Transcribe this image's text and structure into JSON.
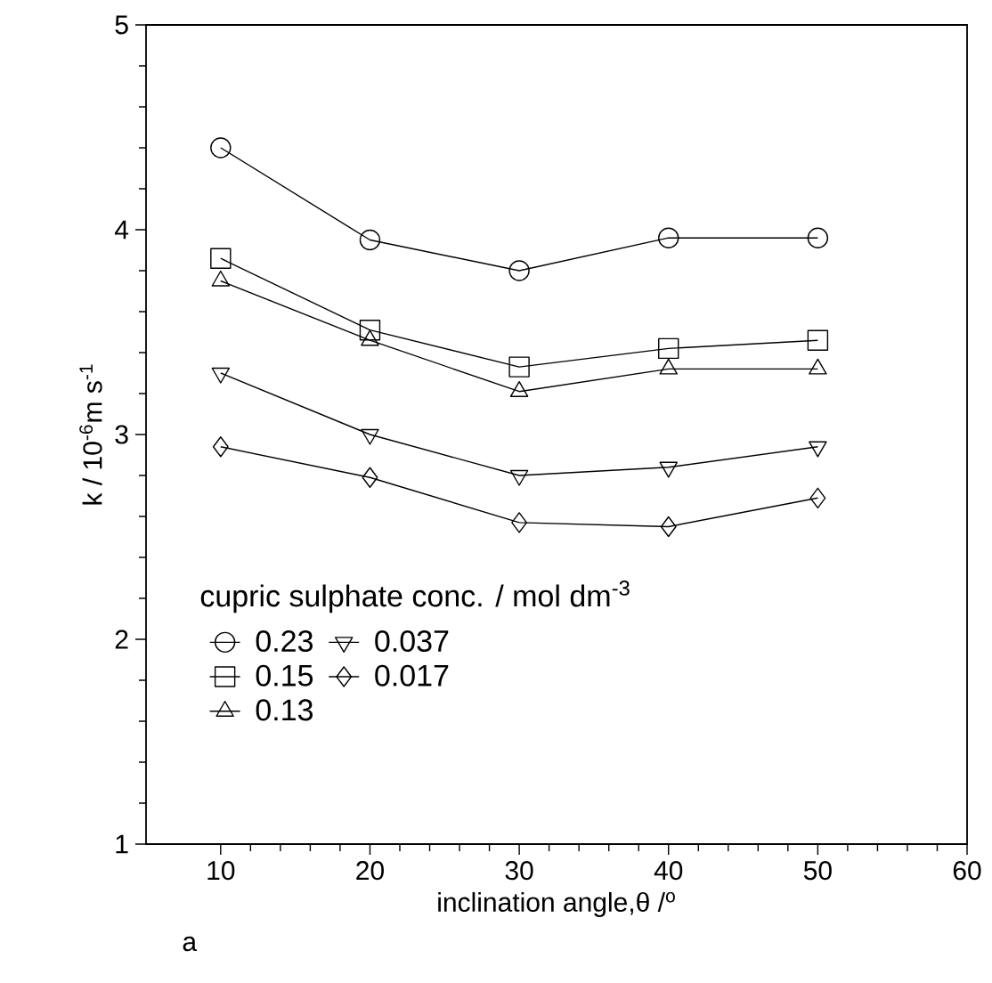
{
  "chart_data": {
    "type": "line",
    "xlabel": "inclination angle,θ /$^{o}$",
    "ylabel": "k / 10$^{-6}$m s$^{-1}$",
    "legend_title": "cupric sulphate conc. / mol dm$^{-3}$",
    "legend": "bottom left",
    "x": [
      10,
      20,
      30,
      40,
      50
    ],
    "xlim": [
      5,
      60
    ],
    "xticks": [
      10,
      20,
      30,
      40,
      50,
      60
    ],
    "ylim": [
      1,
      5
    ],
    "yticks": [
      1,
      2,
      3,
      4,
      5
    ],
    "line_style": "solid",
    "annotations": [
      "a"
    ],
    "series": [
      {
        "name": "0.23",
        "color": "#000000",
        "marker": "circle",
        "values": [
          4.4,
          3.95,
          3.8,
          3.96,
          3.96
        ]
      },
      {
        "name": "0.15",
        "color": "#000000",
        "marker": "square",
        "values": [
          3.86,
          3.51,
          3.33,
          3.42,
          3.46
        ]
      },
      {
        "name": "0.13",
        "color": "#000000",
        "marker": "triangle",
        "values": [
          3.75,
          3.46,
          3.21,
          3.32,
          3.32
        ]
      },
      {
        "name": "0.037",
        "color": "#000000",
        "marker": "triangle-down",
        "values": [
          3.3,
          3.0,
          2.8,
          2.84,
          2.94
        ]
      },
      {
        "name": "0.017",
        "color": "#000000",
        "marker": "diamond",
        "values": [
          2.94,
          2.79,
          2.57,
          2.55,
          2.69
        ]
      }
    ]
  }
}
